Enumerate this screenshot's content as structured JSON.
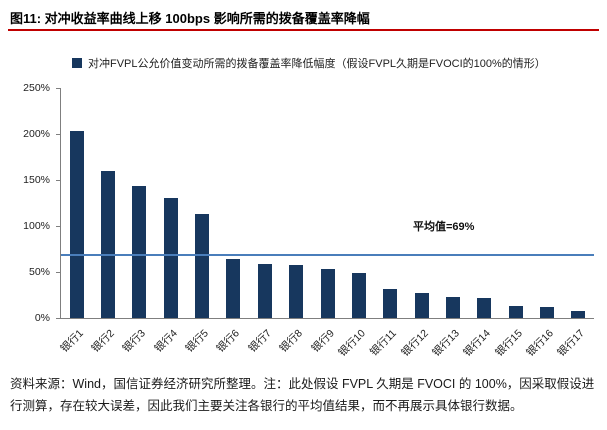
{
  "header": {
    "title": "图11: 对冲收益率曲线上移 100bps 影响所需的拨备覆盖率降幅"
  },
  "chart_data": {
    "type": "bar",
    "title": "图11: 对冲收益率曲线上移 100bps 影响所需的拨备覆盖率降幅",
    "legend": "对冲FVPL公允价值变动所需的拨备覆盖率降低幅度（假设FVPL久期是FVOCI的100%的情形）",
    "categories": [
      "银行1",
      "银行2",
      "银行3",
      "银行4",
      "银行5",
      "银行6",
      "银行7",
      "银行8",
      "银行9",
      "银行10",
      "银行11",
      "银行12",
      "银行13",
      "银行14",
      "银行15",
      "银行16",
      "银行17"
    ],
    "values": [
      203,
      160,
      143,
      130,
      113,
      64,
      59,
      58,
      53,
      49,
      31,
      27,
      23,
      22,
      13,
      12,
      8
    ],
    "unit": "%",
    "ylim": [
      0,
      250
    ],
    "yticks": [
      "0%",
      "50%",
      "100%",
      "150%",
      "200%",
      "250%"
    ],
    "average_line": {
      "value": 69,
      "label": "平均值=69%"
    },
    "bar_color": "#17375e",
    "line_color": "#4a7ebb",
    "accent_color": "#c00000",
    "grid": false,
    "legend_position": "top"
  },
  "footer": {
    "text": "资料来源：Wind，国信证券经济研究所整理。注：此处假设 FVPL 久期是 FVOCI 的 100%，因采取假设进行测算，存在较大误差，因此我们主要关注各银行的平均值结果，而不再展示具体银行数据。"
  }
}
